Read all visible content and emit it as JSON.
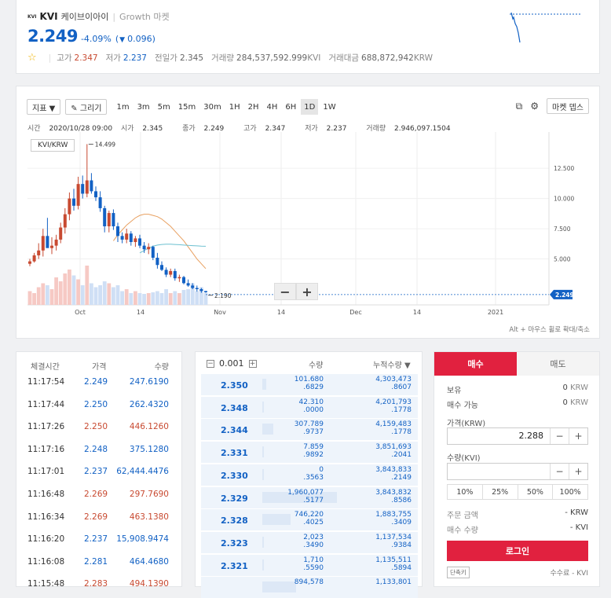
{
  "header": {
    "logo_text": "KVI",
    "symbol": "KVI",
    "korean_name": "케이브이아이",
    "separator": "|",
    "market": "Growth 마켓",
    "price": "2.249",
    "change_rate": "-4.09%",
    "change_open": "(",
    "change_arrow": "▼",
    "change_amount": "0.096)",
    "stats": {
      "high_label": "고가",
      "high": "2.347",
      "low_label": "저가",
      "low": "2.237",
      "prev_label": "전일가",
      "prev": "2.345",
      "volume_label": "거래량",
      "volume": "284,537,592.999",
      "volume_unit": "KVI",
      "amount_label": "거래대금",
      "amount": "688,872,942",
      "amount_unit": "KRW"
    }
  },
  "chart_toolbar": {
    "indicator": "지표 ▼",
    "draw": "✎ 그리기",
    "intervals": [
      "1m",
      "3m",
      "5m",
      "15m",
      "30m",
      "1H",
      "2H",
      "4H",
      "6H",
      "1D",
      "1W"
    ],
    "active_interval": "1D",
    "market_depth": "마켓 뎁스"
  },
  "ohlc": {
    "time_label": "시간",
    "time": "2020/10/28 09:00",
    "open_label": "시가",
    "open": "2.345",
    "close_label": "종가",
    "close": "2.249",
    "high_label": "고가",
    "high": "2.347",
    "low_label": "저가",
    "low": "2.237",
    "vol_label": "거래량",
    "vol": "2.946,097.1504"
  },
  "chart_data": {
    "type": "candlestick",
    "pair_label": "KVI/KRW",
    "x_tick_labels": [
      "Oct",
      "14",
      "Nov",
      "14",
      "Dec",
      "14",
      "2021"
    ],
    "y_tick_labels": [
      "12.500",
      "10.000",
      "7.500",
      "5.000"
    ],
    "y_ticks": [
      12.5,
      10,
      7.5,
      5
    ],
    "ylim": [
      1.2,
      15.5
    ],
    "max_label": "14.499",
    "min_label": "2.190",
    "current_label": "2.249",
    "current": 2.249,
    "colors": {
      "up": "#c84a31",
      "down": "#1261c4",
      "ma1": "#e8a060",
      "ma2": "#6cc0d0"
    },
    "candles": [
      {
        "o": 4.6,
        "h": 5.0,
        "l": 4.4,
        "c": 4.8
      },
      {
        "o": 4.8,
        "h": 5.5,
        "l": 4.7,
        "c": 5.3
      },
      {
        "o": 5.3,
        "h": 6.3,
        "l": 5.0,
        "c": 5.7
      },
      {
        "o": 5.7,
        "h": 7.5,
        "l": 5.2,
        "c": 6.9
      },
      {
        "o": 6.9,
        "h": 8.4,
        "l": 6.0,
        "c": 5.9
      },
      {
        "o": 5.9,
        "h": 6.8,
        "l": 5.4,
        "c": 6.1
      },
      {
        "o": 6.1,
        "h": 7.0,
        "l": 5.7,
        "c": 6.6
      },
      {
        "o": 6.6,
        "h": 8.0,
        "l": 6.3,
        "c": 7.6
      },
      {
        "o": 7.6,
        "h": 9.2,
        "l": 7.1,
        "c": 8.7
      },
      {
        "o": 8.7,
        "h": 10.5,
        "l": 8.2,
        "c": 10.0
      },
      {
        "o": 10.0,
        "h": 10.8,
        "l": 9.0,
        "c": 9.4
      },
      {
        "o": 9.4,
        "h": 11.8,
        "l": 9.1,
        "c": 11.2
      },
      {
        "o": 11.2,
        "h": 11.9,
        "l": 10.0,
        "c": 10.4
      },
      {
        "o": 10.4,
        "h": 14.5,
        "l": 10.1,
        "c": 11.5
      },
      {
        "o": 11.5,
        "h": 12.1,
        "l": 10.4,
        "c": 10.6
      },
      {
        "o": 10.6,
        "h": 11.0,
        "l": 9.8,
        "c": 10.1
      },
      {
        "o": 10.1,
        "h": 10.6,
        "l": 8.9,
        "c": 9.2
      },
      {
        "o": 9.2,
        "h": 9.4,
        "l": 7.2,
        "c": 7.7
      },
      {
        "o": 7.7,
        "h": 9.0,
        "l": 7.2,
        "c": 8.8
      },
      {
        "o": 8.8,
        "h": 9.1,
        "l": 7.4,
        "c": 7.7
      },
      {
        "o": 7.7,
        "h": 8.0,
        "l": 6.4,
        "c": 6.9
      },
      {
        "o": 6.9,
        "h": 7.2,
        "l": 6.3,
        "c": 6.6
      },
      {
        "o": 6.6,
        "h": 7.5,
        "l": 6.3,
        "c": 7.1
      },
      {
        "o": 7.1,
        "h": 7.3,
        "l": 6.1,
        "c": 6.4
      },
      {
        "o": 6.4,
        "h": 6.9,
        "l": 6.0,
        "c": 6.7
      },
      {
        "o": 6.7,
        "h": 7.0,
        "l": 5.9,
        "c": 6.1
      },
      {
        "o": 6.1,
        "h": 6.4,
        "l": 5.5,
        "c": 5.8
      },
      {
        "o": 5.8,
        "h": 6.3,
        "l": 5.4,
        "c": 6.0
      },
      {
        "o": 6.0,
        "h": 6.1,
        "l": 4.9,
        "c": 5.1
      },
      {
        "o": 5.1,
        "h": 5.5,
        "l": 4.2,
        "c": 4.5
      },
      {
        "o": 4.5,
        "h": 4.8,
        "l": 4.0,
        "c": 4.1
      },
      {
        "o": 4.1,
        "h": 4.3,
        "l": 3.5,
        "c": 3.7
      },
      {
        "o": 3.7,
        "h": 4.2,
        "l": 3.5,
        "c": 4.0
      },
      {
        "o": 4.0,
        "h": 4.2,
        "l": 3.2,
        "c": 3.4
      },
      {
        "o": 3.4,
        "h": 3.7,
        "l": 3.1,
        "c": 3.5
      },
      {
        "o": 3.5,
        "h": 3.6,
        "l": 2.9,
        "c": 3.0
      },
      {
        "o": 3.0,
        "h": 3.3,
        "l": 2.7,
        "c": 2.8
      },
      {
        "o": 2.8,
        "h": 3.0,
        "l": 2.5,
        "c": 2.6
      },
      {
        "o": 2.6,
        "h": 2.8,
        "l": 2.3,
        "c": 2.5
      },
      {
        "o": 2.5,
        "h": 2.6,
        "l": 2.2,
        "c": 2.35
      },
      {
        "o": 2.35,
        "h": 2.35,
        "l": 2.2,
        "c": 2.249
      }
    ],
    "volumes": [
      0.35,
      0.3,
      0.45,
      0.55,
      0.5,
      0.4,
      0.7,
      0.6,
      0.8,
      0.9,
      0.75,
      0.65,
      0.5,
      1.0,
      0.55,
      0.45,
      0.5,
      0.6,
      0.55,
      0.45,
      0.5,
      0.35,
      0.4,
      0.3,
      0.35,
      0.3,
      0.28,
      0.3,
      0.32,
      0.35,
      0.3,
      0.4,
      0.3,
      0.35,
      0.3,
      0.38,
      0.4,
      0.55,
      0.35,
      0.45,
      0.3
    ],
    "ma1": [
      null,
      null,
      null,
      null,
      null,
      null,
      null,
      null,
      null,
      null,
      null,
      null,
      null,
      null,
      null,
      null,
      null,
      null,
      null,
      6.5,
      7.0,
      7.4,
      7.8,
      8.1,
      8.4,
      8.6,
      8.7,
      8.7,
      8.6,
      8.5,
      8.3,
      8.0,
      7.7,
      7.3,
      6.9,
      6.5,
      6.0,
      5.5,
      5.0,
      4.6,
      4.2
    ],
    "ma2": [
      null,
      null,
      null,
      null,
      null,
      null,
      null,
      null,
      null,
      null,
      null,
      null,
      null,
      null,
      null,
      null,
      null,
      null,
      null,
      null,
      null,
      null,
      null,
      null,
      null,
      5.5,
      5.7,
      5.9,
      6.05,
      6.15,
      6.2,
      6.22,
      6.22,
      6.2,
      6.18,
      6.15,
      6.12,
      6.1,
      6.08,
      6.06,
      6.05
    ]
  },
  "chart_hint": "Alt + 마우스 휠로 확대/축소",
  "zoom": {
    "minus": "−",
    "plus": "+"
  },
  "trades": {
    "headers": {
      "time": "체결시간",
      "price": "가격",
      "qty": "수량"
    },
    "rows": [
      {
        "time": "11:17:54",
        "price": "2.249",
        "qty": "247.6190",
        "dir": "down"
      },
      {
        "time": "11:17:44",
        "price": "2.250",
        "qty": "262.4320",
        "dir": "down"
      },
      {
        "time": "11:17:26",
        "price": "2.250",
        "qty": "446.1260",
        "dir": "up"
      },
      {
        "time": "11:17:16",
        "price": "2.248",
        "qty": "375.1280",
        "dir": "down"
      },
      {
        "time": "11:17:01",
        "price": "2.237",
        "qty": "62,444.4476",
        "dir": "down"
      },
      {
        "time": "11:16:48",
        "price": "2.269",
        "qty": "297.7690",
        "dir": "up"
      },
      {
        "time": "11:16:34",
        "price": "2.269",
        "qty": "463.1380",
        "dir": "up"
      },
      {
        "time": "11:16:20",
        "price": "2.237",
        "qty": "15,908.9474",
        "dir": "down"
      },
      {
        "time": "11:16:08",
        "price": "2.281",
        "qty": "464.4680",
        "dir": "down"
      },
      {
        "time": "11:15:48",
        "price": "2.283",
        "qty": "494.1390",
        "dir": "up"
      }
    ]
  },
  "orderbook": {
    "tick": "0.001",
    "minus_box": "−",
    "plus_box": "+",
    "qty_header": "수량",
    "cum_header": "누적수량 ▼",
    "rows": [
      {
        "price": "2.350",
        "q1": "101.680",
        "q2": ".6829",
        "c1": "4,303,473",
        "c2": ".8607",
        "bar": 0.05
      },
      {
        "price": "2.348",
        "q1": "42.310",
        "q2": ".0000",
        "c1": "4,201,793",
        "c2": ".1778",
        "bar": 0.02
      },
      {
        "price": "2.344",
        "q1": "307.789",
        "q2": ".9737",
        "c1": "4,159,483",
        "c2": ".1778",
        "bar": 0.15
      },
      {
        "price": "2.331",
        "q1": "7.859",
        "q2": ".9892",
        "c1": "3,851,693",
        "c2": ".2041",
        "bar": 0.01
      },
      {
        "price": "2.330",
        "q1": "0",
        "q2": ".3563",
        "c1": "3,843,833",
        "c2": ".2149",
        "bar": 0.005
      },
      {
        "price": "2.329",
        "q1": "1,960,077",
        "q2": ".5177",
        "c1": "3,843,832",
        "c2": ".8586",
        "bar": 1.0
      },
      {
        "price": "2.328",
        "q1": "746,220",
        "q2": ".4025",
        "c1": "1,883,755",
        "c2": ".3409",
        "bar": 0.38
      },
      {
        "price": "2.323",
        "q1": "2,023",
        "q2": ".3490",
        "c1": "1,137,534",
        "c2": ".9384",
        "bar": 0.01
      },
      {
        "price": "2.321",
        "q1": "1,710",
        "q2": ".5590",
        "c1": "1,135,511",
        "c2": ".5894",
        "bar": 0.01
      },
      {
        "price": "",
        "q1": "894,578",
        "q2": "",
        "c1": "1,133,801",
        "c2": "",
        "bar": 0.45
      }
    ]
  },
  "order": {
    "buy_tab": "매수",
    "sell_tab": "매도",
    "holding_label": "보유",
    "holding_value": "0",
    "holding_unit": "KRW",
    "avail_label": "매수 가능",
    "avail_value": "0",
    "avail_unit": "KRW",
    "price_label": "가격(KRW)",
    "price_value": "2.288",
    "qty_label": "수량(KVI)",
    "qty_value": "",
    "minus": "−",
    "plus": "+",
    "pcts": [
      "10%",
      "25%",
      "50%",
      "100%"
    ],
    "amount_label": "주문 금액",
    "amount_value": "- KRW",
    "buyqty_label": "매수 수량",
    "buyqty_value": "- KVI",
    "login": "로그인",
    "shortcut": "단축키",
    "fee": "수수료 - KVI"
  }
}
